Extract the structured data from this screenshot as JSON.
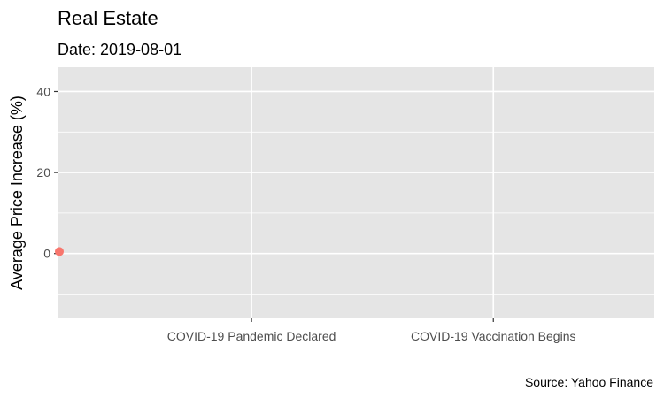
{
  "chart_data": {
    "type": "scatter",
    "title": "Real Estate",
    "subtitle": "Date: 2019-08-01",
    "ylabel": "Average Price Increase (%)",
    "xlabel": "",
    "caption": "Source: Yahoo Finance",
    "x_ticks": [
      {
        "label": "COVID-19 Pandemic Declared",
        "date": "2020-03-11"
      },
      {
        "label": "COVID-19 Vaccination Begins",
        "date": "2020-12-14"
      }
    ],
    "xlim": [
      "2019-08-01",
      "2021-06-17"
    ],
    "ylim": [
      -16,
      46
    ],
    "y_ticks": [
      0,
      20,
      40
    ],
    "y_minor": [
      -10,
      10,
      30
    ],
    "points": [
      {
        "x": "2019-08-01",
        "y": 0.5,
        "color": "#f8766d"
      }
    ],
    "colors": {
      "panel": "#e5e5e5",
      "grid": "#ffffff",
      "axis_text": "#4d4d4d",
      "point": "#f8766d"
    },
    "grid": true,
    "legend": "none"
  }
}
